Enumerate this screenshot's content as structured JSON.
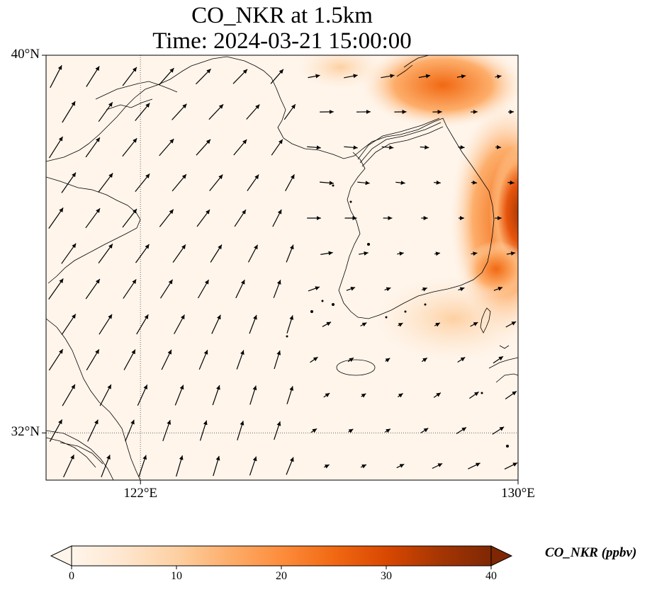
{
  "title": {
    "line1": "CO_NKR at 1.5km",
    "line2": "Time: 2024-03-21 15:00:00"
  },
  "map": {
    "variable": "CO_NKR",
    "units": "ppbv",
    "lat_range": [
      31,
      40
    ],
    "lon_range": [
      120,
      130
    ],
    "lat_ticks": [
      {
        "value": 40,
        "label": "40°N"
      },
      {
        "value": 32,
        "label": "32°N"
      }
    ],
    "lon_ticks": [
      {
        "value": 122,
        "label": "122°E"
      },
      {
        "value": 130,
        "label": "130°E"
      }
    ],
    "gridlines": "dotted",
    "wind_vectors": "shown",
    "high_concentration_region": "east coast of Korean Peninsula and East Sea, up to ~40 ppbv"
  },
  "colorbar": {
    "label": "CO_NKR (ppbv)",
    "min": 0,
    "max": 40,
    "extend": "both",
    "ticks": [
      {
        "value": 0,
        "label": "0"
      },
      {
        "value": 10,
        "label": "10"
      },
      {
        "value": 20,
        "label": "20"
      },
      {
        "value": 30,
        "label": "30"
      },
      {
        "value": 40,
        "label": "40"
      }
    ],
    "colormap": [
      "#fff5eb",
      "#fee6ce",
      "#fdd0a2",
      "#fdae6b",
      "#fd8d3c",
      "#f16913",
      "#d94801",
      "#a63603",
      "#7f2704"
    ]
  }
}
